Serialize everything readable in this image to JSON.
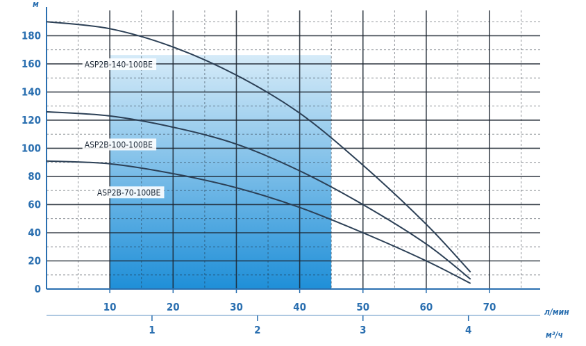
{
  "chart_data": {
    "type": "line",
    "title": "",
    "x_primary": {
      "unit": "л/мин",
      "ticks": [
        0,
        10,
        20,
        30,
        40,
        50,
        60,
        70
      ],
      "range": [
        0,
        78
      ]
    },
    "x_secondary": {
      "unit": "м³/ч",
      "ticks": [
        1,
        2,
        3,
        4
      ]
    },
    "y_axis": {
      "unit": "м",
      "ticks": [
        0,
        20,
        40,
        60,
        80,
        100,
        120,
        140,
        160,
        180
      ],
      "tick_labels": [
        "0",
        "20",
        "40",
        "60",
        "80",
        "100",
        "120",
        "140",
        "160",
        "180"
      ],
      "range": [
        0,
        198
      ]
    },
    "grid": true,
    "shaded_range_x": [
      10,
      45
    ],
    "series": [
      {
        "name": "ASP2B-140-100BE",
        "x": [
          0,
          10,
          20,
          30,
          40,
          50,
          60,
          67
        ],
        "y": [
          190,
          185,
          172,
          152,
          125,
          88,
          46,
          12
        ]
      },
      {
        "name": "ASP2B-100-100BE",
        "x": [
          0,
          10,
          20,
          30,
          40,
          50,
          60,
          67
        ],
        "y": [
          126,
          123,
          115,
          103,
          84,
          60,
          32,
          7
        ]
      },
      {
        "name": "ASP2B-70-100BE",
        "x": [
          0,
          10,
          20,
          30,
          40,
          50,
          60,
          67
        ],
        "y": [
          91,
          89,
          82,
          72,
          58,
          40,
          20,
          4
        ]
      }
    ],
    "colors": {
      "axis": "#2a6fb0",
      "grid": "#1c2530",
      "curve": "#2b3f55",
      "shade_top": "#d6ebf8",
      "shade_bottom": "#1f8fd8"
    }
  }
}
